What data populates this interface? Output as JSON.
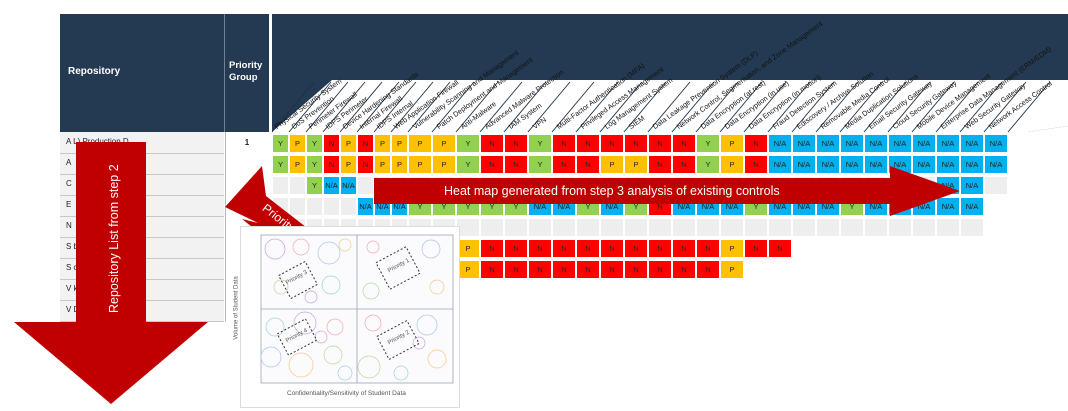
{
  "header": {
    "repository_label": "Repository",
    "priority_label": "Priority Group"
  },
  "repositories": [
    {
      "name": "A                              L) Production D",
      "priority": "1"
    },
    {
      "name": "A",
      "priority": ""
    },
    {
      "name": "C",
      "priority": ""
    },
    {
      "name": "E",
      "priority": ""
    },
    {
      "name": "N",
      "priority": ""
    },
    {
      "name": "S                            base",
      "priority": ""
    },
    {
      "name": "S                            cation Servers",
      "priority": ""
    },
    {
      "name": "V                            kUp)",
      "priority": ""
    },
    {
      "name": "V                             Database",
      "priority": ""
    }
  ],
  "controls": [
    "Physical Security System",
    "DoS Prevention",
    "Perimeter Firewall",
    "IDPS Perimeter",
    "Device Hardening Standards",
    "Internal Firewall",
    "IDPS Internal",
    "Web Application Firewall",
    "Vulnerability Scanning and Management",
    "Patch Deployment and Management",
    "Anti-Malware",
    "Advanced Malware Protection",
    "IAM System",
    "VPN",
    "Multi-Factor Authentication (MFA)",
    "Privileged Access Management",
    "Log Management System",
    "SIEM",
    "Data Leakage Prevention System (DLP)",
    "Network Control, Segmentation, and Zone Management",
    "Data Encryption (at rest)",
    "Data Encryption (in use)",
    "Data Encryption (in motion)",
    "Fraud Detection System",
    "Ediscovery / Archive Solution",
    "Removable Media Control",
    "Media Duplication Solutions",
    "Email Security Gateway",
    "Cloud Security Gateway",
    "Mobile Device Management",
    "Enterprise Data Management (ERM/EDM)",
    "Web Security Gateway",
    "Network Access Control"
  ],
  "heatmap": {
    "rows": [
      [
        "Y",
        "P",
        "Y",
        "N",
        "P",
        "N",
        "P",
        "P",
        "P",
        "P",
        "Y",
        "N",
        "N",
        "Y",
        "N",
        "N",
        "N",
        "N",
        "N",
        "N",
        "Y",
        "P",
        "N",
        "N/A",
        "N/A",
        "N/A",
        "N/A",
        "N/A",
        "N/A",
        "N/A",
        "N/A",
        "N/A",
        "N/A"
      ],
      [
        "Y",
        "P",
        "Y",
        "N",
        "P",
        "N",
        "P",
        "P",
        "P",
        "P",
        "Y",
        "N",
        "N",
        "Y",
        "N",
        "N",
        "P",
        "P",
        "N",
        "N",
        "Y",
        "P",
        "N",
        "N/A",
        "N/A",
        "N/A",
        "N/A",
        "N/A",
        "N/A",
        "N/A",
        "N/A",
        "N/A",
        "N/A"
      ],
      [
        "",
        "",
        "Y",
        "N/A",
        "N/A",
        "",
        "",
        "",
        "",
        "",
        "",
        "",
        "",
        "",
        "",
        "",
        "",
        "",
        "",
        "",
        "",
        "",
        "",
        "",
        "",
        "",
        "",
        "",
        "",
        "",
        "N/A",
        "N/A",
        ""
      ],
      [
        "",
        "",
        "",
        "",
        "",
        "N/A",
        "N/A",
        "N/A",
        "Y",
        "Y",
        "Y",
        "Y",
        "Y",
        "N/A",
        "N/A",
        "Y",
        "N/A",
        "Y",
        "N",
        "N/A",
        "N/A",
        "N/A",
        "Y",
        "N/A",
        "N/A",
        "N/A",
        "Y",
        "N/A",
        "N/A",
        "N/A",
        "N/A",
        "N/A",
        "N/A"
      ],
      [
        "",
        "",
        "",
        "",
        "",
        "",
        "",
        "",
        "",
        "",
        "",
        "",
        "",
        "",
        "",
        "",
        "",
        "",
        "",
        "",
        "",
        "",
        "",
        "",
        "",
        "",
        "",
        "",
        "",
        "",
        "",
        "",
        ""
      ],
      [
        "",
        "",
        "",
        "",
        "",
        "",
        "P",
        "P",
        "P",
        "P",
        "P",
        "N",
        "N",
        "N",
        "N",
        "N",
        "N",
        "N",
        "N",
        "N",
        "N",
        "P",
        "N",
        "N",
        "",
        "",
        "",
        "",
        "",
        "",
        "",
        "",
        ""
      ],
      [
        "",
        "",
        "",
        "",
        "",
        "",
        "P",
        "P",
        "P",
        "P",
        "P",
        "N",
        "N",
        "N",
        "N",
        "N",
        "N",
        "N",
        "N",
        "N",
        "N",
        "P",
        "",
        "",
        "",
        "",
        "",
        "",
        "",
        "",
        "",
        "",
        ""
      ],
      [
        "",
        "",
        "",
        "",
        "",
        "",
        "",
        "",
        "",
        "",
        "",
        "",
        "",
        "",
        "",
        "",
        "",
        "",
        "",
        "",
        "",
        "",
        "",
        "",
        "",
        "",
        "",
        "",
        "",
        "",
        "",
        "",
        ""
      ],
      [
        "",
        "",
        "",
        "",
        "",
        "",
        "",
        "",
        "",
        "",
        "",
        "",
        "",
        "",
        "",
        "",
        "",
        "",
        "",
        "",
        "",
        "",
        "",
        "",
        "",
        "",
        "",
        "",
        "",
        "",
        "",
        "",
        ""
      ]
    ]
  },
  "annotations": {
    "repository_arrow": "Repository List from step 2",
    "priority_arrow": "Priority Group from step 3",
    "heatmap_arrow": "Heat map generated from step 3 analysis of existing controls"
  },
  "inset": {
    "x_axis": "Confidentiality/Sensitivity of Student Data",
    "y_axis": "Volume of Student Data",
    "quadrant_labels": [
      "Priority 1",
      "Priority 2",
      "Priority 3",
      "Priority 4"
    ]
  },
  "colors": {
    "header_bg": "#233a52",
    "Y": "#92d050",
    "P": "#ffc000",
    "N": "#ff0000",
    "N/A": "#00b0f0",
    "arrow": "#c00000"
  }
}
